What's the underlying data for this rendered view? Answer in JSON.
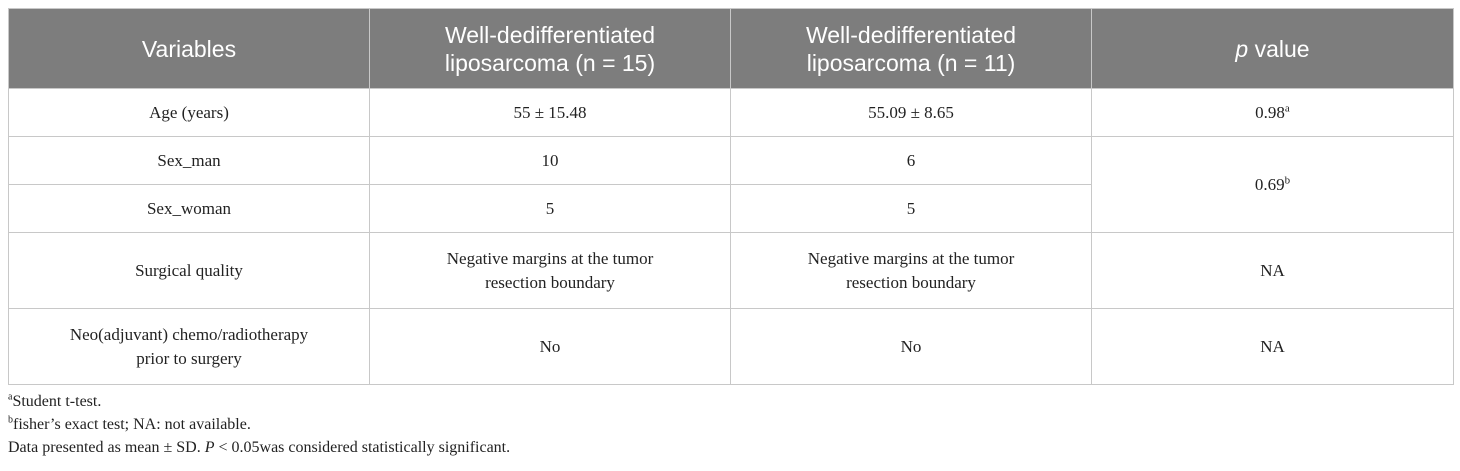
{
  "table": {
    "headers": {
      "variables": "Variables",
      "group1_line1": "Well-dedifferentiated",
      "group1_line2": "liposarcoma (n = 15)",
      "group2_line1": "Well-dedifferentiated",
      "group2_line2": "liposarcoma (n = 11)",
      "p_italic": "p",
      "p_rest": " value"
    },
    "rows": [
      {
        "variable": "Age (years)",
        "group1": "55 ± 15.48",
        "group2": "55.09 ± 8.65",
        "p": "0.98",
        "p_sup": "a"
      },
      {
        "variable": "Sex_man",
        "group1": "10",
        "group2": "6",
        "p": "0.69",
        "p_sup": "b"
      },
      {
        "variable": "Sex_woman",
        "group1": "5",
        "group2": "5"
      },
      {
        "variable": "Surgical quality",
        "group1_line1": "Negative margins at the tumor",
        "group1_line2": "resection boundary",
        "group2_line1": "Negative margins at the tumor",
        "group2_line2": "resection boundary",
        "p": "NA"
      },
      {
        "variable_line1": "Neo(adjuvant) chemo/radiotherapy",
        "variable_line2": "prior to surgery",
        "group1": "No",
        "group2": "No",
        "p": "NA"
      }
    ]
  },
  "footnotes": {
    "a_mark": "a",
    "a_text": "Student t-test.",
    "b_mark": "b",
    "b_text": "fisher’s exact test; NA: not available.",
    "data_prefix": "Data presented as mean ± SD. ",
    "data_p": "P",
    "data_suffix": " < 0.05was considered statistically significant."
  }
}
